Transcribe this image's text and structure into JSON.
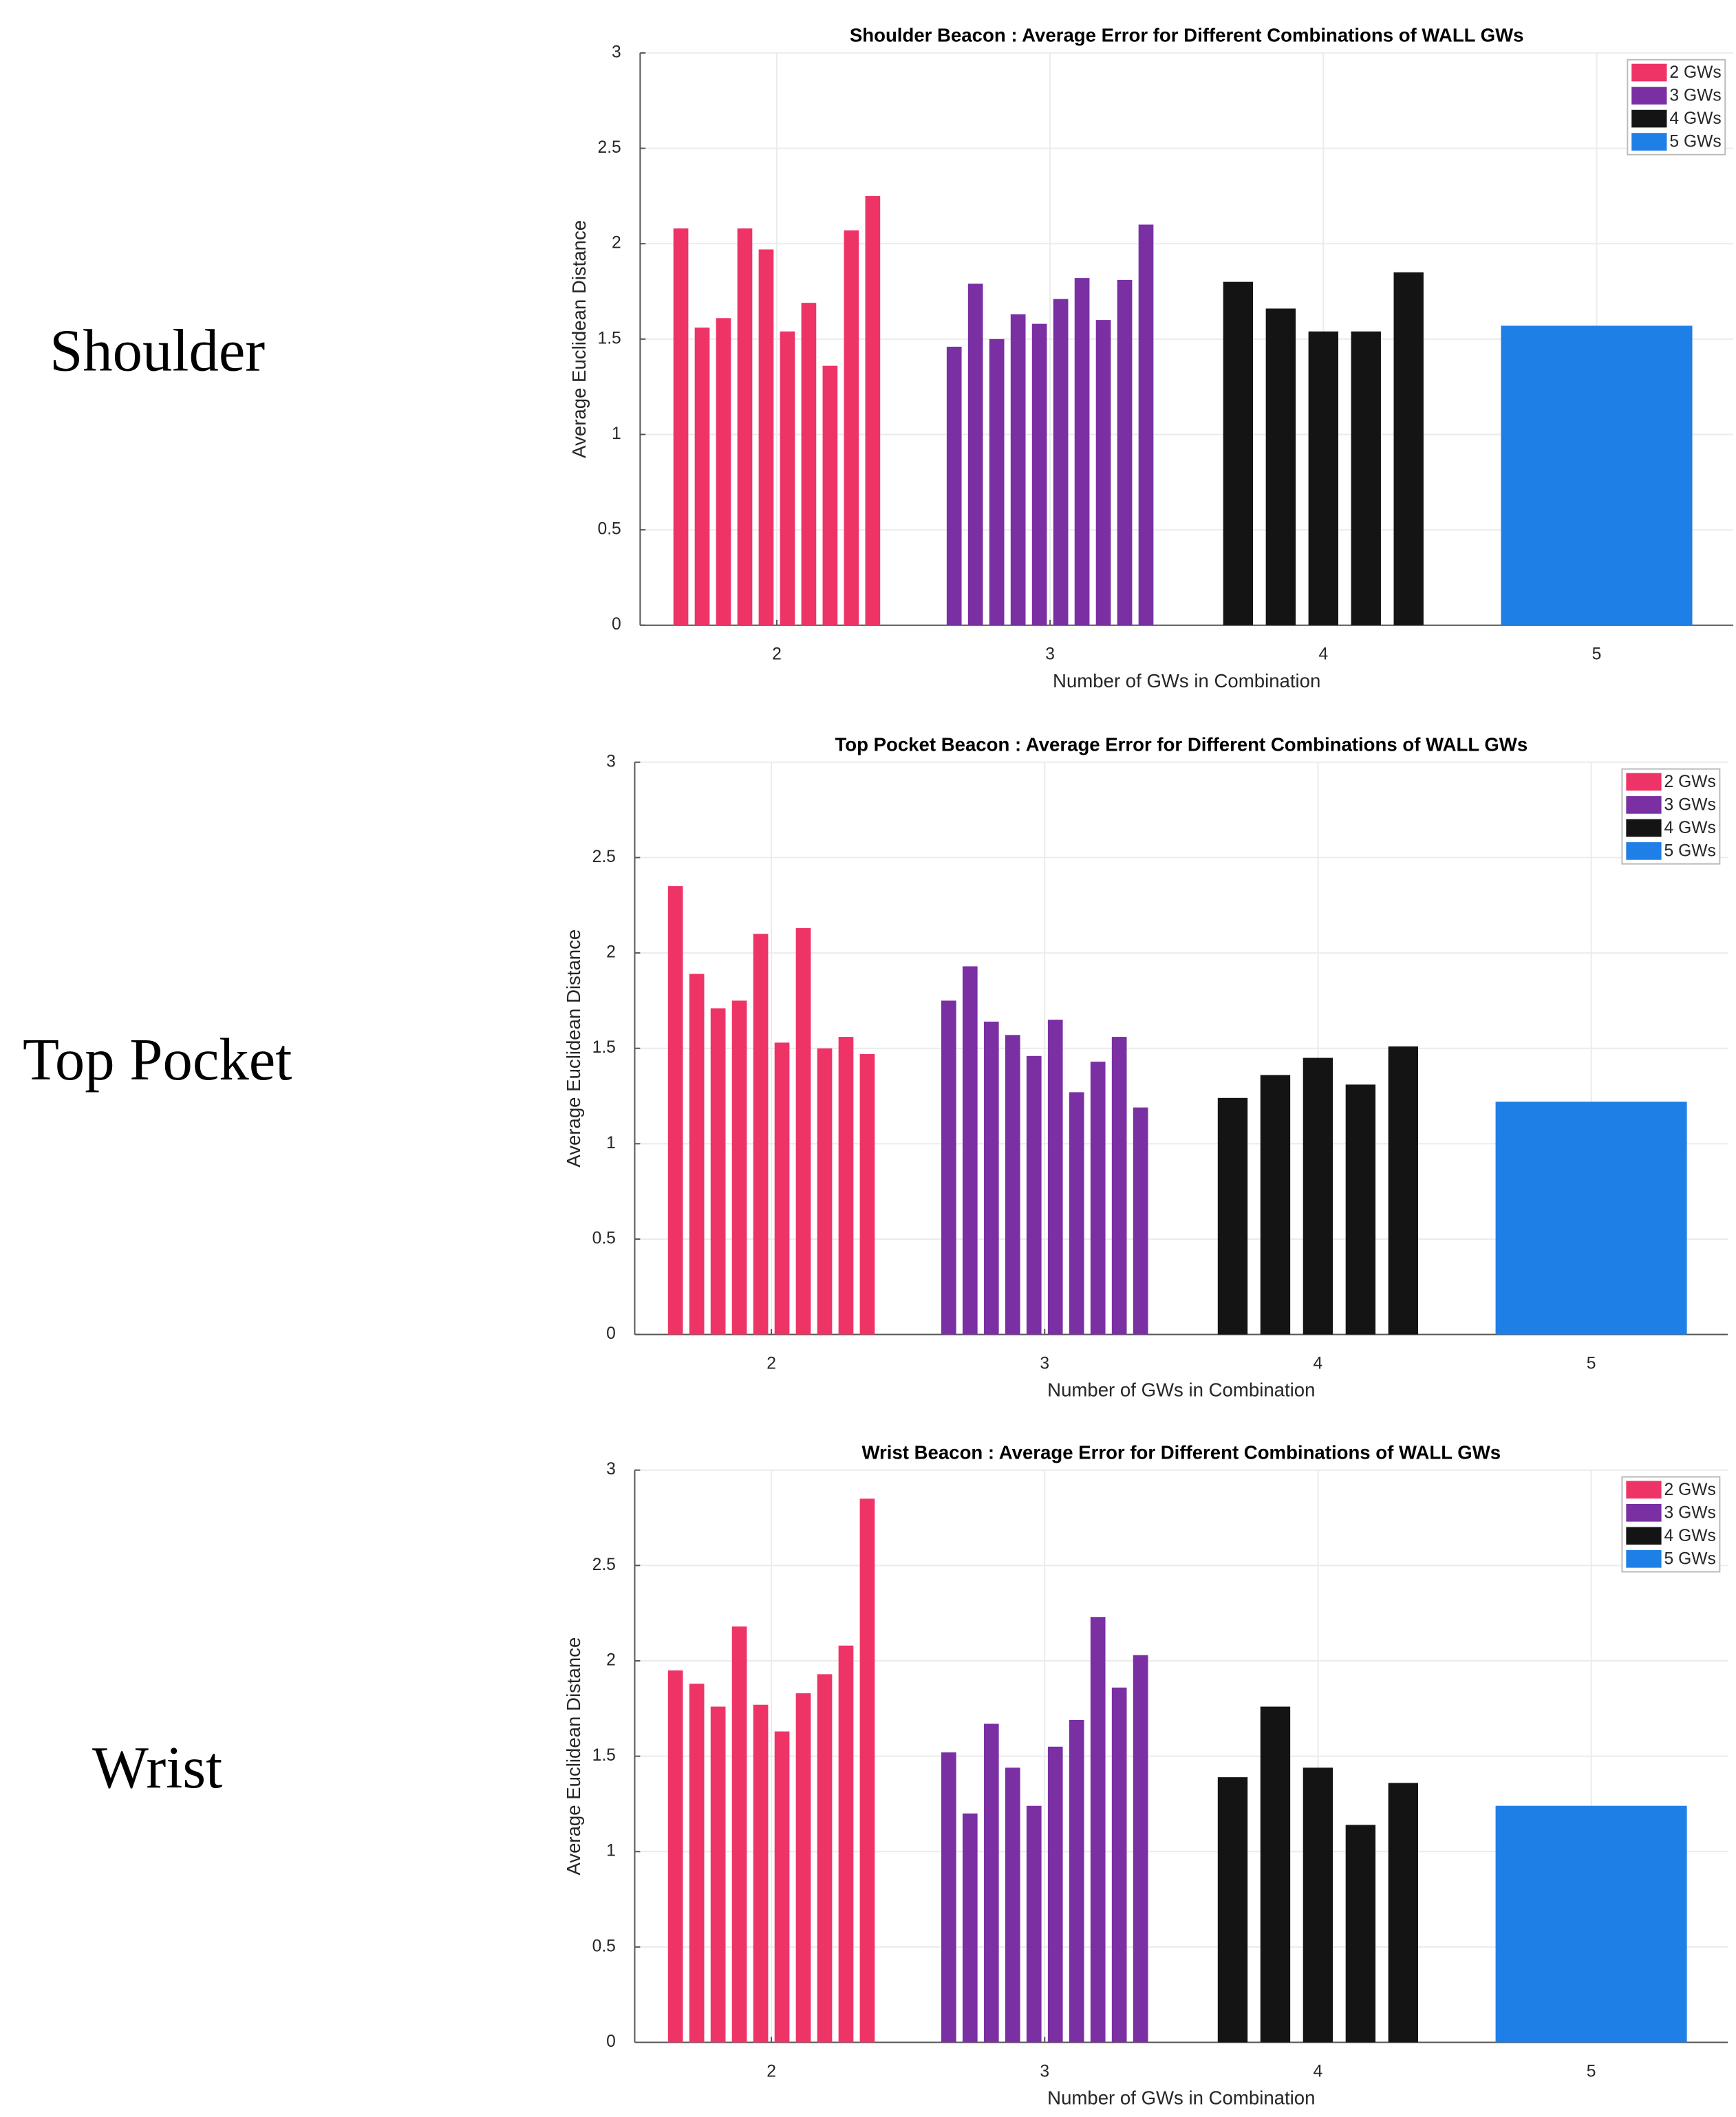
{
  "row_labels": [
    "Shoulder",
    "Top Pocket",
    "Wrist"
  ],
  "chart_data": [
    {
      "type": "bar",
      "title": "Shoulder Beacon : Average Error for Different Combinations of WALL GWs",
      "xlabel": "Number of GWs in Combination",
      "ylabel": "Average Euclidean Distance",
      "xlim": [
        1.5,
        5.5
      ],
      "xticks": [
        2,
        3,
        4,
        5
      ],
      "ylim": [
        0,
        3
      ],
      "yticks": [
        0,
        0.5,
        1,
        1.5,
        2,
        2.5,
        3
      ],
      "grid": true,
      "legend": "upper right",
      "series": [
        {
          "name": "2 GWs",
          "color": "#ee3466",
          "values": [
            2.08,
            1.56,
            1.61,
            2.08,
            1.97,
            1.54,
            1.69,
            1.36,
            2.07,
            2.25
          ]
        },
        {
          "name": "3 GWs",
          "color": "#7a2fa3",
          "values": [
            1.46,
            1.79,
            1.5,
            1.63,
            1.58,
            1.71,
            1.82,
            1.6,
            1.81,
            2.1
          ]
        },
        {
          "name": "4 GWs",
          "color": "#141414",
          "values": [
            1.8,
            1.66,
            1.54,
            1.54,
            1.85
          ]
        },
        {
          "name": "5 GWs",
          "color": "#1e7fe6",
          "values": [
            1.57
          ]
        }
      ]
    },
    {
      "type": "bar",
      "title": "Top Pocket Beacon : Average Error for Different Combinations of WALL GWs",
      "xlabel": "Number of GWs in Combination",
      "ylabel": "Average Euclidean Distance",
      "xlim": [
        1.5,
        5.5
      ],
      "xticks": [
        2,
        3,
        4,
        5
      ],
      "ylim": [
        0,
        3
      ],
      "yticks": [
        0,
        0.5,
        1,
        1.5,
        2,
        2.5,
        3
      ],
      "grid": true,
      "legend": "upper right",
      "series": [
        {
          "name": "2 GWs",
          "color": "#ee3466",
          "values": [
            2.35,
            1.89,
            1.71,
            1.75,
            2.1,
            1.53,
            2.13,
            1.5,
            1.56,
            1.47
          ]
        },
        {
          "name": "3 GWs",
          "color": "#7a2fa3",
          "values": [
            1.75,
            1.93,
            1.64,
            1.57,
            1.46,
            1.65,
            1.27,
            1.43,
            1.56,
            1.19
          ]
        },
        {
          "name": "4 GWs",
          "color": "#141414",
          "values": [
            1.24,
            1.36,
            1.45,
            1.31,
            1.51
          ]
        },
        {
          "name": "5 GWs",
          "color": "#1e7fe6",
          "values": [
            1.22
          ]
        }
      ]
    },
    {
      "type": "bar",
      "title": "Wrist Beacon : Average Error for Different Combinations of WALL GWs",
      "xlabel": "Number of GWs in Combination",
      "ylabel": "Average Euclidean Distance",
      "xlim": [
        1.5,
        5.5
      ],
      "xticks": [
        2,
        3,
        4,
        5
      ],
      "ylim": [
        0,
        3
      ],
      "yticks": [
        0,
        0.5,
        1,
        1.5,
        2,
        2.5,
        3
      ],
      "grid": true,
      "legend": "upper right",
      "series": [
        {
          "name": "2 GWs",
          "color": "#ee3466",
          "values": [
            1.95,
            1.88,
            1.76,
            2.18,
            1.77,
            1.63,
            1.83,
            1.93,
            2.08,
            2.85
          ]
        },
        {
          "name": "3 GWs",
          "color": "#7a2fa3",
          "values": [
            1.52,
            1.2,
            1.67,
            1.44,
            1.24,
            1.55,
            1.69,
            2.23,
            1.86,
            2.03
          ]
        },
        {
          "name": "4 GWs",
          "color": "#141414",
          "values": [
            1.39,
            1.76,
            1.44,
            1.14,
            1.36
          ]
        },
        {
          "name": "5 GWs",
          "color": "#1e7fe6",
          "values": [
            1.24
          ]
        }
      ]
    }
  ]
}
